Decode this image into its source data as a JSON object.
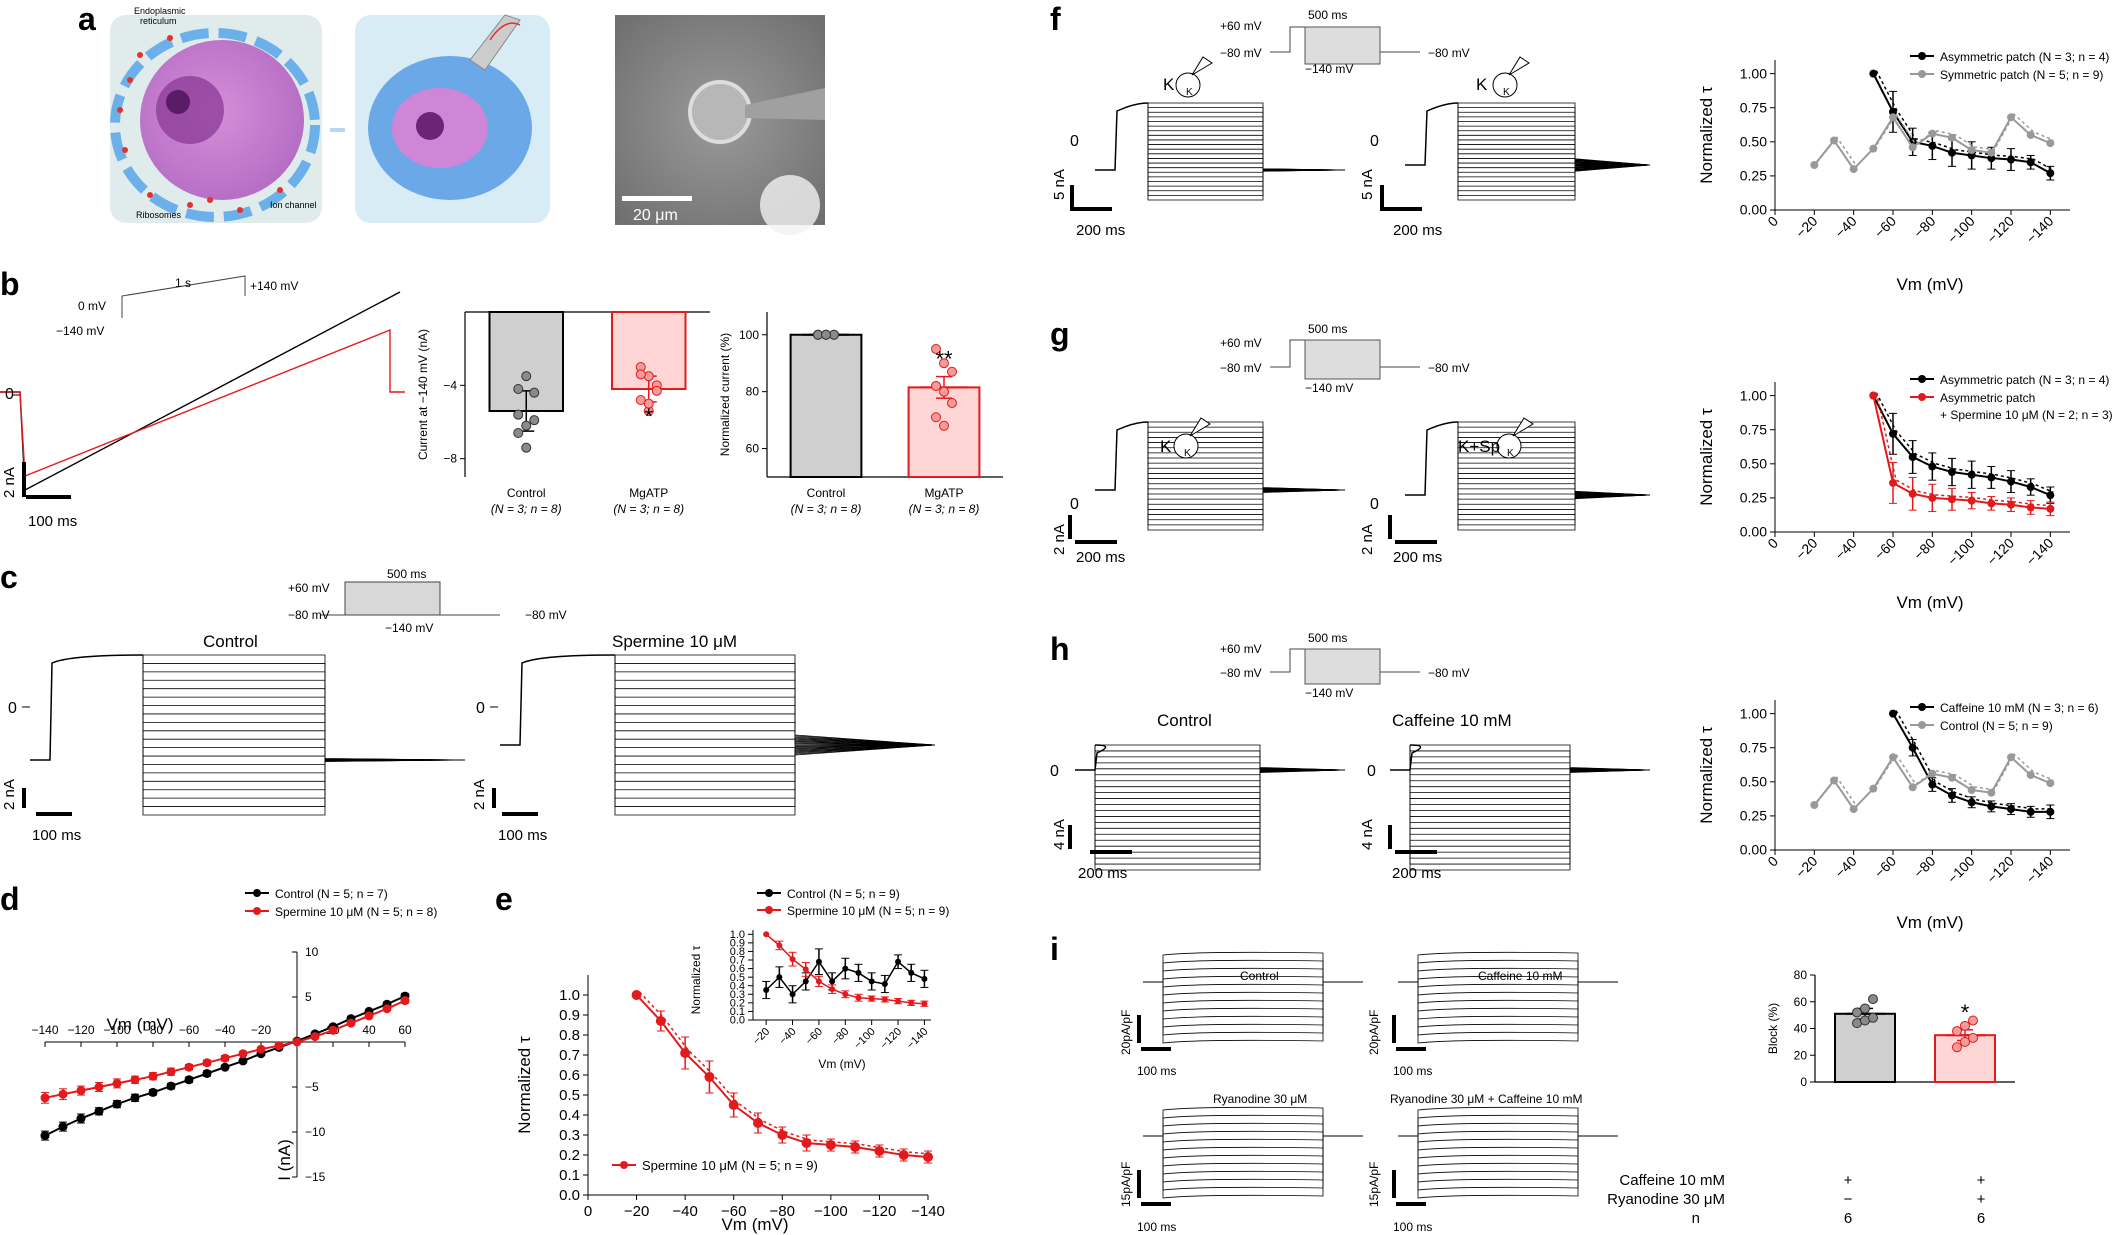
{
  "panels": {
    "a": "a",
    "b": "b",
    "c": "c",
    "d": "d",
    "e": "e",
    "f": "f",
    "g": "g",
    "h": "h",
    "i": "i"
  },
  "a": {
    "er": "Endoplasmic",
    "er2": "reticulum",
    "ribo": "Ribosomes",
    "ion": "Ion channel",
    "scale": "20 μm"
  },
  "b": {
    "v0": "0 mV",
    "vm140": "−140 mV",
    "v140": "+140 mV",
    "dur": "1 s",
    "zero": "0",
    "scaleY": "2 nA",
    "scaleX": "100 ms"
  },
  "c": {
    "v60": "+60 mV",
    "v80": "−80 mV",
    "vm140": "−140 mV",
    "dur": "500 ms",
    "v80r": "−80 mV",
    "control": "Control",
    "spermine": "Spermine 10 μM",
    "zero": "0",
    "zero2": "0",
    "scaleY": "2 nA",
    "scaleX": "100 ms",
    "scaleY2": "2 nA",
    "scaleX2": "100 ms"
  },
  "f": {
    "v60": "+60 mV",
    "v80": "−80 mV",
    "vm140": "−140 mV",
    "dur": "500 ms",
    "v80r": "−80 mV",
    "k1": "K",
    "k2": "K",
    "kin1": "K",
    "kin2": "K",
    "zero": "0",
    "zero2": "0",
    "scaleY": "5 nA",
    "scaleX": "200 ms",
    "scaleY2": "5 nA",
    "scaleX2": "200 ms"
  },
  "g": {
    "v60": "+60 mV",
    "v80": "−80 mV",
    "vm140": "−140 mV",
    "dur": "500 ms",
    "v80r": "−80 mV",
    "k1": "K",
    "k2": "K+Sp",
    "kin1": "K",
    "kin2": "K",
    "zero": "0",
    "zero2": "0",
    "scaleY": "2 nA",
    "scaleX": "200 ms",
    "scaleY2": "2 nA",
    "scaleX2": "200 ms"
  },
  "h": {
    "v60": "+60 mV",
    "v80": "−80 mV",
    "vm140": "−140 mV",
    "dur": "500 ms",
    "v80r": "−80 mV",
    "control": "Control",
    "caffeine": "Caffeine 10 mM",
    "zero": "0",
    "zero2": "0",
    "scaleY": "4 nA",
    "scaleX": "200 ms",
    "scaleY2": "4 nA",
    "scaleX2": "200 ms"
  },
  "i": {
    "control": "Control",
    "caffeine": "Caffeine 10 mM",
    "ryan": "Ryanodine 30 μM",
    "ryancaf": "Ryanodine 30 μM + Caffeine 10 mM",
    "s1": "20pA/pF",
    "s2": "20pA/pF",
    "s3": "15pA/pF",
    "s4": "15pA/pF",
    "ms1": "100 ms",
    "ms2": "100 ms",
    "ms3": "100 ms",
    "ms4": "100 ms",
    "rowCaf": "Caffeine 10 mM",
    "rowRyan": "Ryanodine 30 μM",
    "rowN": "n",
    "c1a": "+",
    "c1b": "−",
    "c1c": "6",
    "c2a": "+",
    "c2b": "+",
    "c2c": "6"
  },
  "chart_data": [
    {
      "id": "b-bar1",
      "type": "bar",
      "ylabel": "Current at −140 mV (nA)",
      "categories": [
        "Control",
        "MgATP"
      ],
      "sublabels": [
        "(N = 3; n = 8)",
        "(N = 3; n = 8)"
      ],
      "values": [
        -5.4,
        -4.2
      ],
      "sem": [
        1.1,
        0.7
      ],
      "points": [
        [
          -4.2,
          -3.5,
          -4.4,
          -5.6,
          -6.2,
          -5.9,
          -6.6,
          -7.4
        ],
        [
          -3.0,
          -3.5,
          -4.0,
          -4.8,
          -5.4,
          -4.3,
          -3.4,
          -5.0
        ]
      ],
      "yticks": [
        -4,
        -8
      ],
      "ylim": [
        -9,
        0
      ],
      "significance": [
        "",
        "*"
      ],
      "colors": [
        "#cfcfcf",
        "#ffd6d6"
      ]
    },
    {
      "id": "b-bar2",
      "type": "bar",
      "ylabel": "Normalized current (%)",
      "categories": [
        "Control",
        "MgATP"
      ],
      "sublabels": [
        "(N = 3; n = 8)",
        "(N = 3; n = 8)"
      ],
      "values": [
        100,
        81.5
      ],
      "sem": [
        0,
        3.8
      ],
      "points": [
        [
          100,
          100,
          100,
          100,
          100,
          100,
          100,
          100
        ],
        [
          95,
          90,
          87,
          82,
          80,
          76,
          71,
          68
        ]
      ],
      "yticks": [
        60,
        80,
        100
      ],
      "ylim": [
        50,
        108
      ],
      "significance": [
        "",
        "**"
      ],
      "colors": [
        "#cfcfcf",
        "#ffd6d6"
      ]
    },
    {
      "id": "d",
      "type": "line",
      "xlabel": "Vm (mV)",
      "ylabel": "I (nA)",
      "xlim": [
        -140,
        60
      ],
      "ylim": [
        -15,
        10
      ],
      "xticks": [
        -140,
        -120,
        -100,
        -80,
        -60,
        -40,
        -20,
        20,
        40,
        60
      ],
      "yticks": [
        -15,
        -10,
        -5,
        5,
        10
      ],
      "series": [
        {
          "name": "Control",
          "label": "Control (N = 5; n = 7)",
          "color": "#000000",
          "x": [
            -140,
            -130,
            -120,
            -110,
            -100,
            -90,
            -80,
            -70,
            -60,
            -50,
            -40,
            -30,
            -20,
            -10,
            0,
            10,
            20,
            30,
            40,
            50,
            60
          ],
          "y": [
            -10.4,
            -9.4,
            -8.5,
            -7.7,
            -6.9,
            -6.2,
            -5.6,
            -4.9,
            -4.2,
            -3.5,
            -2.8,
            -2.1,
            -1.3,
            -0.6,
            0.1,
            0.9,
            1.7,
            2.6,
            3.4,
            4.2,
            5.1
          ],
          "err": [
            0.5,
            0.5,
            0.5,
            0.4,
            0.4,
            0.4,
            0.3,
            0.3,
            0.3,
            0.3,
            0.2,
            0.2,
            0.2,
            0.2,
            0.1,
            0.1,
            0.1,
            0.2,
            0.2,
            0.2,
            0.3
          ]
        },
        {
          "name": "Spermine 10 μM",
          "label": "Spermine 10 μM (N = 5; n = 8)",
          "color": "#e31a1c",
          "x": [
            -140,
            -130,
            -120,
            -110,
            -100,
            -90,
            -80,
            -70,
            -60,
            -50,
            -40,
            -30,
            -20,
            -10,
            0,
            10,
            20,
            30,
            40,
            50,
            60
          ],
          "y": [
            -6.2,
            -5.8,
            -5.4,
            -5.0,
            -4.6,
            -4.2,
            -3.8,
            -3.3,
            -2.8,
            -2.3,
            -1.8,
            -1.3,
            -0.8,
            -0.4,
            0.0,
            0.6,
            1.3,
            2.1,
            2.9,
            3.7,
            4.6
          ],
          "err": [
            0.6,
            0.6,
            0.5,
            0.5,
            0.5,
            0.4,
            0.4,
            0.4,
            0.3,
            0.3,
            0.3,
            0.2,
            0.2,
            0.2,
            0.1,
            0.1,
            0.1,
            0.2,
            0.2,
            0.2,
            0.3
          ]
        }
      ]
    },
    {
      "id": "e",
      "type": "line",
      "xlabel": "Vm (mV)",
      "ylabel": "Normalized τ",
      "xlim": [
        0,
        -140
      ],
      "ylim": [
        0,
        1.1
      ],
      "xticks": [
        0,
        -20,
        -40,
        -60,
        -80,
        -100,
        -120,
        -140
      ],
      "yticks": [
        0,
        0.1,
        0.2,
        0.3,
        0.4,
        0.5,
        0.6,
        0.7,
        0.8,
        0.9,
        1.0
      ],
      "series": [
        {
          "name": "Spermine 10 μM",
          "label": "Spermine 10 μM (N = 5; n = 9)",
          "color": "#e31a1c",
          "x": [
            -20,
            -30,
            -40,
            -50,
            -60,
            -70,
            -80,
            -90,
            -100,
            -110,
            -120,
            -130,
            -140
          ],
          "y": [
            1.0,
            0.87,
            0.71,
            0.59,
            0.45,
            0.36,
            0.3,
            0.26,
            0.25,
            0.24,
            0.22,
            0.2,
            0.19
          ],
          "err": [
            0,
            0.05,
            0.08,
            0.08,
            0.06,
            0.05,
            0.04,
            0.04,
            0.03,
            0.03,
            0.03,
            0.03,
            0.03
          ]
        }
      ]
    },
    {
      "id": "e-inset",
      "type": "line",
      "xlabel": "Vm (mV)",
      "ylabel": "Normalized τ",
      "xlim": [
        -10,
        -145
      ],
      "ylim": [
        0,
        1.05
      ],
      "xticks": [
        -20,
        -40,
        -60,
        -80,
        -100,
        -120,
        -140
      ],
      "yticks": [
        0,
        0.1,
        0.2,
        0.3,
        0.4,
        0.5,
        0.6,
        0.7,
        0.8,
        0.9,
        1.0
      ],
      "series": [
        {
          "name": "Control",
          "label": "Control (N = 5; n = 9)",
          "color": "#000000",
          "x": [
            -20,
            -30,
            -40,
            -50,
            -60,
            -70,
            -80,
            -90,
            -100,
            -110,
            -120,
            -130,
            -140
          ],
          "y": [
            0.35,
            0.5,
            0.3,
            0.45,
            0.68,
            0.45,
            0.6,
            0.55,
            0.45,
            0.42,
            0.68,
            0.55,
            0.48
          ],
          "err": [
            0.1,
            0.12,
            0.1,
            0.1,
            0.15,
            0.1,
            0.12,
            0.1,
            0.1,
            0.1,
            0.08,
            0.1,
            0.1
          ]
        },
        {
          "name": "Spermine 10 μM",
          "label": "Spermine 10 μM (N = 5; n = 9)",
          "color": "#e31a1c",
          "x": [
            -20,
            -30,
            -40,
            -50,
            -60,
            -70,
            -80,
            -90,
            -100,
            -110,
            -120,
            -130,
            -140
          ],
          "y": [
            1.0,
            0.87,
            0.71,
            0.59,
            0.45,
            0.36,
            0.3,
            0.26,
            0.25,
            0.24,
            0.22,
            0.2,
            0.19
          ],
          "err": [
            0,
            0.05,
            0.08,
            0.08,
            0.06,
            0.05,
            0.04,
            0.04,
            0.03,
            0.03,
            0.03,
            0.03,
            0.03
          ]
        }
      ]
    },
    {
      "id": "f",
      "type": "line",
      "xlabel": "Vm (mV)",
      "ylabel": "Normalized τ",
      "xlim": [
        0,
        -150
      ],
      "ylim": [
        0,
        1.1
      ],
      "xticks": [
        0,
        -20,
        -40,
        -60,
        -80,
        -100,
        -120,
        -140
      ],
      "yticks": [
        0,
        0.25,
        0.5,
        0.75,
        1.0
      ],
      "series": [
        {
          "name": "Asymmetric patch",
          "label": "Asymmetric patch (N = 3; n = 4)",
          "color": "#000000",
          "x": [
            -50,
            -60,
            -70,
            -80,
            -90,
            -100,
            -110,
            -120,
            -130,
            -140
          ],
          "y": [
            1.0,
            0.72,
            0.5,
            0.47,
            0.42,
            0.4,
            0.38,
            0.37,
            0.35,
            0.27
          ],
          "err": [
            0,
            0.15,
            0.1,
            0.1,
            0.1,
            0.1,
            0.08,
            0.08,
            0.05,
            0.05
          ]
        },
        {
          "name": "Symmetric patch",
          "label": "Symmetric patch (N = 5; n = 9)",
          "color": "#999999",
          "x": [
            -20,
            -30,
            -40,
            -50,
            -60,
            -70,
            -80,
            -90,
            -100,
            -110,
            -120,
            -130,
            -140
          ],
          "y": [
            0.33,
            0.51,
            0.3,
            0.45,
            0.68,
            0.46,
            0.56,
            0.53,
            0.44,
            0.42,
            0.68,
            0.55,
            0.49
          ],
          "err": []
        }
      ]
    },
    {
      "id": "g",
      "type": "line",
      "xlabel": "Vm (mV)",
      "ylabel": "Normalized τ",
      "xlim": [
        0,
        -150
      ],
      "ylim": [
        0,
        1.1
      ],
      "xticks": [
        0,
        -20,
        -40,
        -60,
        -80,
        -100,
        -120,
        -140
      ],
      "yticks": [
        0,
        0.25,
        0.5,
        0.75,
        1.0
      ],
      "series": [
        {
          "name": "Asymmetric patch",
          "label": "Asymmetric patch (N = 3; n = 4)",
          "color": "#000000",
          "x": [
            -50,
            -60,
            -70,
            -80,
            -90,
            -100,
            -110,
            -120,
            -130,
            -140
          ],
          "y": [
            1.0,
            0.72,
            0.55,
            0.48,
            0.44,
            0.42,
            0.4,
            0.37,
            0.33,
            0.27
          ],
          "err": [
            0,
            0.15,
            0.12,
            0.1,
            0.1,
            0.1,
            0.08,
            0.08,
            0.06,
            0.06
          ]
        },
        {
          "name": "Asymmetric patch + Spermine 10 μM",
          "label": "Asymmetric patch",
          "label2": "+ Spermine 10 μM (N = 2; n = 3)",
          "color": "#e31a1c",
          "x": [
            -50,
            -60,
            -70,
            -80,
            -90,
            -100,
            -110,
            -120,
            -130,
            -140
          ],
          "y": [
            1.0,
            0.36,
            0.28,
            0.25,
            0.24,
            0.23,
            0.21,
            0.2,
            0.18,
            0.17
          ],
          "err": [
            0,
            0.15,
            0.12,
            0.1,
            0.08,
            0.06,
            0.05,
            0.05,
            0.05,
            0.05
          ]
        }
      ]
    },
    {
      "id": "h",
      "type": "line",
      "xlabel": "Vm (mV)",
      "ylabel": "Normalized τ",
      "xlim": [
        0,
        -150
      ],
      "ylim": [
        0,
        1.1
      ],
      "xticks": [
        0,
        -20,
        -40,
        -60,
        -80,
        -100,
        -120,
        -140
      ],
      "yticks": [
        0,
        0.25,
        0.5,
        0.75,
        1.0
      ],
      "series": [
        {
          "name": "Caffeine 10 mM",
          "label": "Caffeine 10 mM (N = 3; n = 6)",
          "color": "#000000",
          "x": [
            -60,
            -70,
            -80,
            -90,
            -100,
            -110,
            -120,
            -130,
            -140
          ],
          "y": [
            1.0,
            0.75,
            0.48,
            0.4,
            0.35,
            0.32,
            0.3,
            0.28,
            0.28
          ],
          "err": [
            0,
            0.06,
            0.05,
            0.05,
            0.04,
            0.04,
            0.04,
            0.04,
            0.05
          ]
        },
        {
          "name": "Control",
          "label": "Control (N = 5; n = 9)",
          "color": "#999999",
          "x": [
            -20,
            -30,
            -40,
            -50,
            -60,
            -70,
            -80,
            -90,
            -100,
            -110,
            -120,
            -130,
            -140
          ],
          "y": [
            0.33,
            0.51,
            0.3,
            0.45,
            0.68,
            0.46,
            0.56,
            0.53,
            0.44,
            0.42,
            0.68,
            0.55,
            0.49
          ],
          "err": []
        }
      ]
    },
    {
      "id": "i-bar",
      "type": "bar",
      "ylabel": "Block (%)",
      "categories": [
        "Caffeine + / Ryanodine −",
        "Caffeine + / Ryanodine +"
      ],
      "values": [
        51,
        35
      ],
      "sem": [
        4,
        4
      ],
      "points": [
        [
          44,
          46,
          48,
          52,
          55,
          62
        ],
        [
          26,
          30,
          33,
          38,
          42,
          46
        ]
      ],
      "yticks": [
        0,
        20,
        40,
        60,
        80
      ],
      "ylim": [
        0,
        80
      ],
      "significance": [
        "",
        "*"
      ],
      "colors": [
        "#cfcfcf",
        "#ffd6d6"
      ]
    }
  ]
}
